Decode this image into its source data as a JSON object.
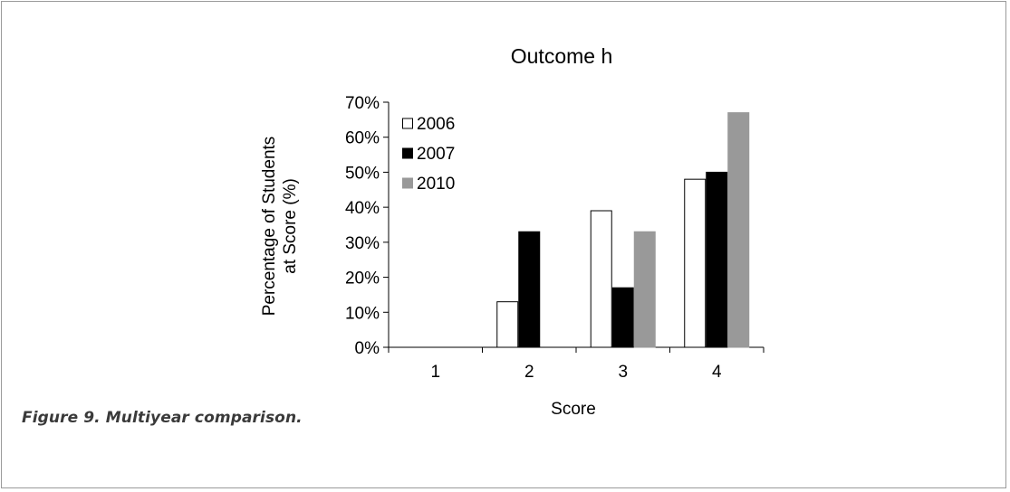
{
  "caption": "Figure 9. Multiyear comparison.",
  "chart_data": {
    "type": "bar",
    "title": "Outcome h",
    "xlabel": "Score",
    "ylabel_lines": [
      "Percentage of Students",
      "at Score (%)"
    ],
    "categories": [
      "1",
      "2",
      "3",
      "4"
    ],
    "ylim": [
      0,
      70
    ],
    "yticks": [
      0,
      10,
      20,
      30,
      40,
      50,
      60,
      70
    ],
    "ytick_labels": [
      "0%",
      "10%",
      "20%",
      "30%",
      "40%",
      "50%",
      "60%",
      "70%"
    ],
    "grid": false,
    "legend_position": "top-left",
    "series": [
      {
        "name": "2006",
        "values": [
          0,
          13,
          39,
          48
        ],
        "color": "#ffffff",
        "stroke": "#000000"
      },
      {
        "name": "2007",
        "values": [
          0,
          33,
          17,
          50
        ],
        "color": "#000000",
        "stroke": "#000000"
      },
      {
        "name": "2010",
        "values": [
          0,
          0,
          33,
          67
        ],
        "color": "#999999",
        "stroke": "#999999"
      }
    ]
  }
}
